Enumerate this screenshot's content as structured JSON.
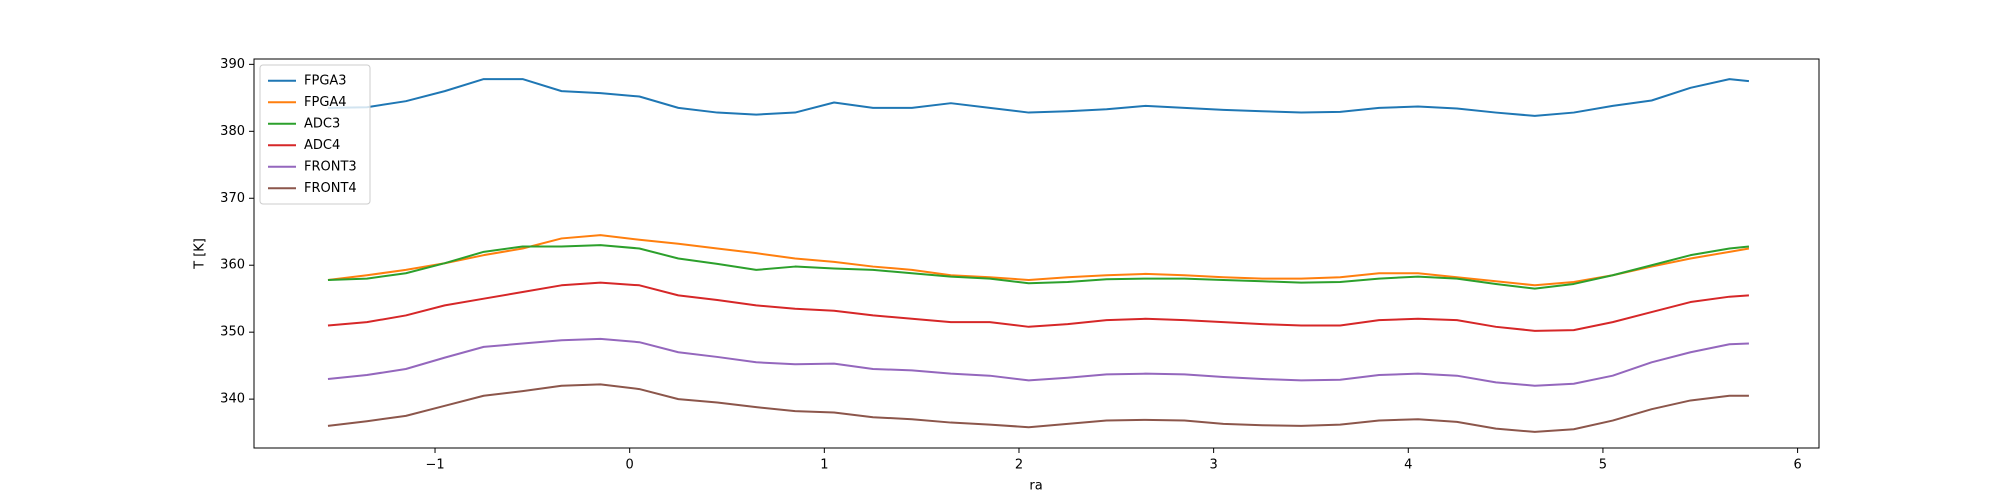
{
  "chart_data": {
    "type": "line",
    "x_label": "ra",
    "y_label": "T [K]",
    "x": [
      -1.55,
      -1.35,
      -1.15,
      -0.95,
      -0.75,
      -0.55,
      -0.35,
      -0.15,
      0.05,
      0.25,
      0.45,
      0.65,
      0.85,
      1.05,
      1.25,
      1.45,
      1.65,
      1.85,
      2.05,
      2.25,
      2.45,
      2.65,
      2.85,
      3.05,
      3.25,
      3.45,
      3.65,
      3.85,
      4.05,
      4.25,
      4.45,
      4.65,
      4.85,
      5.05,
      5.25,
      5.45,
      5.65,
      5.75
    ],
    "series": [
      {
        "name": "FPGA3",
        "color": "#1f77b4",
        "values": [
          383.5,
          383.6,
          384.5,
          386,
          387.8,
          387.8,
          386,
          385.7,
          385.2,
          383.5,
          382.8,
          382.5,
          382.8,
          384.3,
          383.5,
          383.5,
          384.2,
          383.5,
          382.8,
          383.0,
          383.3,
          383.8,
          383.5,
          383.2,
          383.0,
          382.8,
          382.9,
          383.5,
          383.7,
          383.4,
          382.8,
          382.3,
          382.8,
          383.8,
          384.6,
          386.5,
          387.8,
          387.5
        ]
      },
      {
        "name": "FPGA4",
        "color": "#ff7f0e",
        "values": [
          357.8,
          358.5,
          359.3,
          360.3,
          361.5,
          362.5,
          364,
          364.5,
          363.8,
          363.2,
          362.5,
          361.8,
          361,
          360.5,
          359.8,
          359.3,
          358.5,
          358.2,
          357.8,
          358.2,
          358.5,
          358.7,
          358.5,
          358.2,
          358.0,
          358.0,
          358.2,
          358.8,
          358.8,
          358.2,
          357.6,
          357.0,
          357.5,
          358.5,
          359.8,
          361.0,
          362.0,
          362.5
        ]
      },
      {
        "name": "ADC3",
        "color": "#2ca02c",
        "values": [
          357.8,
          358.0,
          358.8,
          360.3,
          362.0,
          362.8,
          362.8,
          363.0,
          362.5,
          361.0,
          360.2,
          359.3,
          359.8,
          359.5,
          359.3,
          358.8,
          358.3,
          358.0,
          357.3,
          357.5,
          357.9,
          358.0,
          358.0,
          357.8,
          357.6,
          357.4,
          357.5,
          358.0,
          358.3,
          358.0,
          357.2,
          356.5,
          357.2,
          358.5,
          360.0,
          361.5,
          362.5,
          362.8
        ]
      },
      {
        "name": "ADC4",
        "color": "#d62728",
        "values": [
          351,
          351.5,
          352.5,
          354,
          355,
          356,
          357,
          357.4,
          357,
          355.5,
          354.8,
          354,
          353.5,
          353.2,
          352.5,
          352,
          351.5,
          351.5,
          350.8,
          351.2,
          351.8,
          352,
          351.8,
          351.5,
          351.2,
          351.0,
          351.0,
          351.8,
          352,
          351.8,
          350.8,
          350.2,
          350.3,
          351.5,
          353.0,
          354.5,
          355.3,
          355.5
        ]
      },
      {
        "name": "FRONT3",
        "color": "#9467bd",
        "values": [
          343,
          343.6,
          344.5,
          346.2,
          347.8,
          348.3,
          348.8,
          349.0,
          348.5,
          347.0,
          346.3,
          345.5,
          345.2,
          345.3,
          344.5,
          344.3,
          343.8,
          343.5,
          342.8,
          343.2,
          343.7,
          343.8,
          343.7,
          343.3,
          343.0,
          342.8,
          342.9,
          343.6,
          343.8,
          343.5,
          342.5,
          342.0,
          342.3,
          343.5,
          345.5,
          347.0,
          348.2,
          348.3
        ]
      },
      {
        "name": "FRONT4",
        "color": "#8c564b",
        "values": [
          336,
          336.7,
          337.5,
          339.0,
          340.5,
          341.2,
          342.0,
          342.2,
          341.5,
          340.0,
          339.5,
          338.8,
          338.2,
          338.0,
          337.3,
          337.0,
          336.5,
          336.2,
          335.8,
          336.3,
          336.8,
          336.9,
          336.8,
          336.3,
          336.1,
          336.0,
          336.2,
          336.8,
          337.0,
          336.6,
          335.6,
          335.1,
          335.5,
          336.8,
          338.5,
          339.8,
          340.5,
          340.5
        ]
      }
    ],
    "xlim": [
      -1.93,
      6.11
    ],
    "ylim": [
      332.7,
      390.8
    ],
    "xticks": [
      {
        "value": -1,
        "label": "−1"
      },
      0,
      1,
      2,
      3,
      4,
      5,
      6
    ],
    "yticks": [
      340,
      350,
      360,
      370,
      380,
      390
    ],
    "grid": false,
    "legend": "upper left"
  }
}
